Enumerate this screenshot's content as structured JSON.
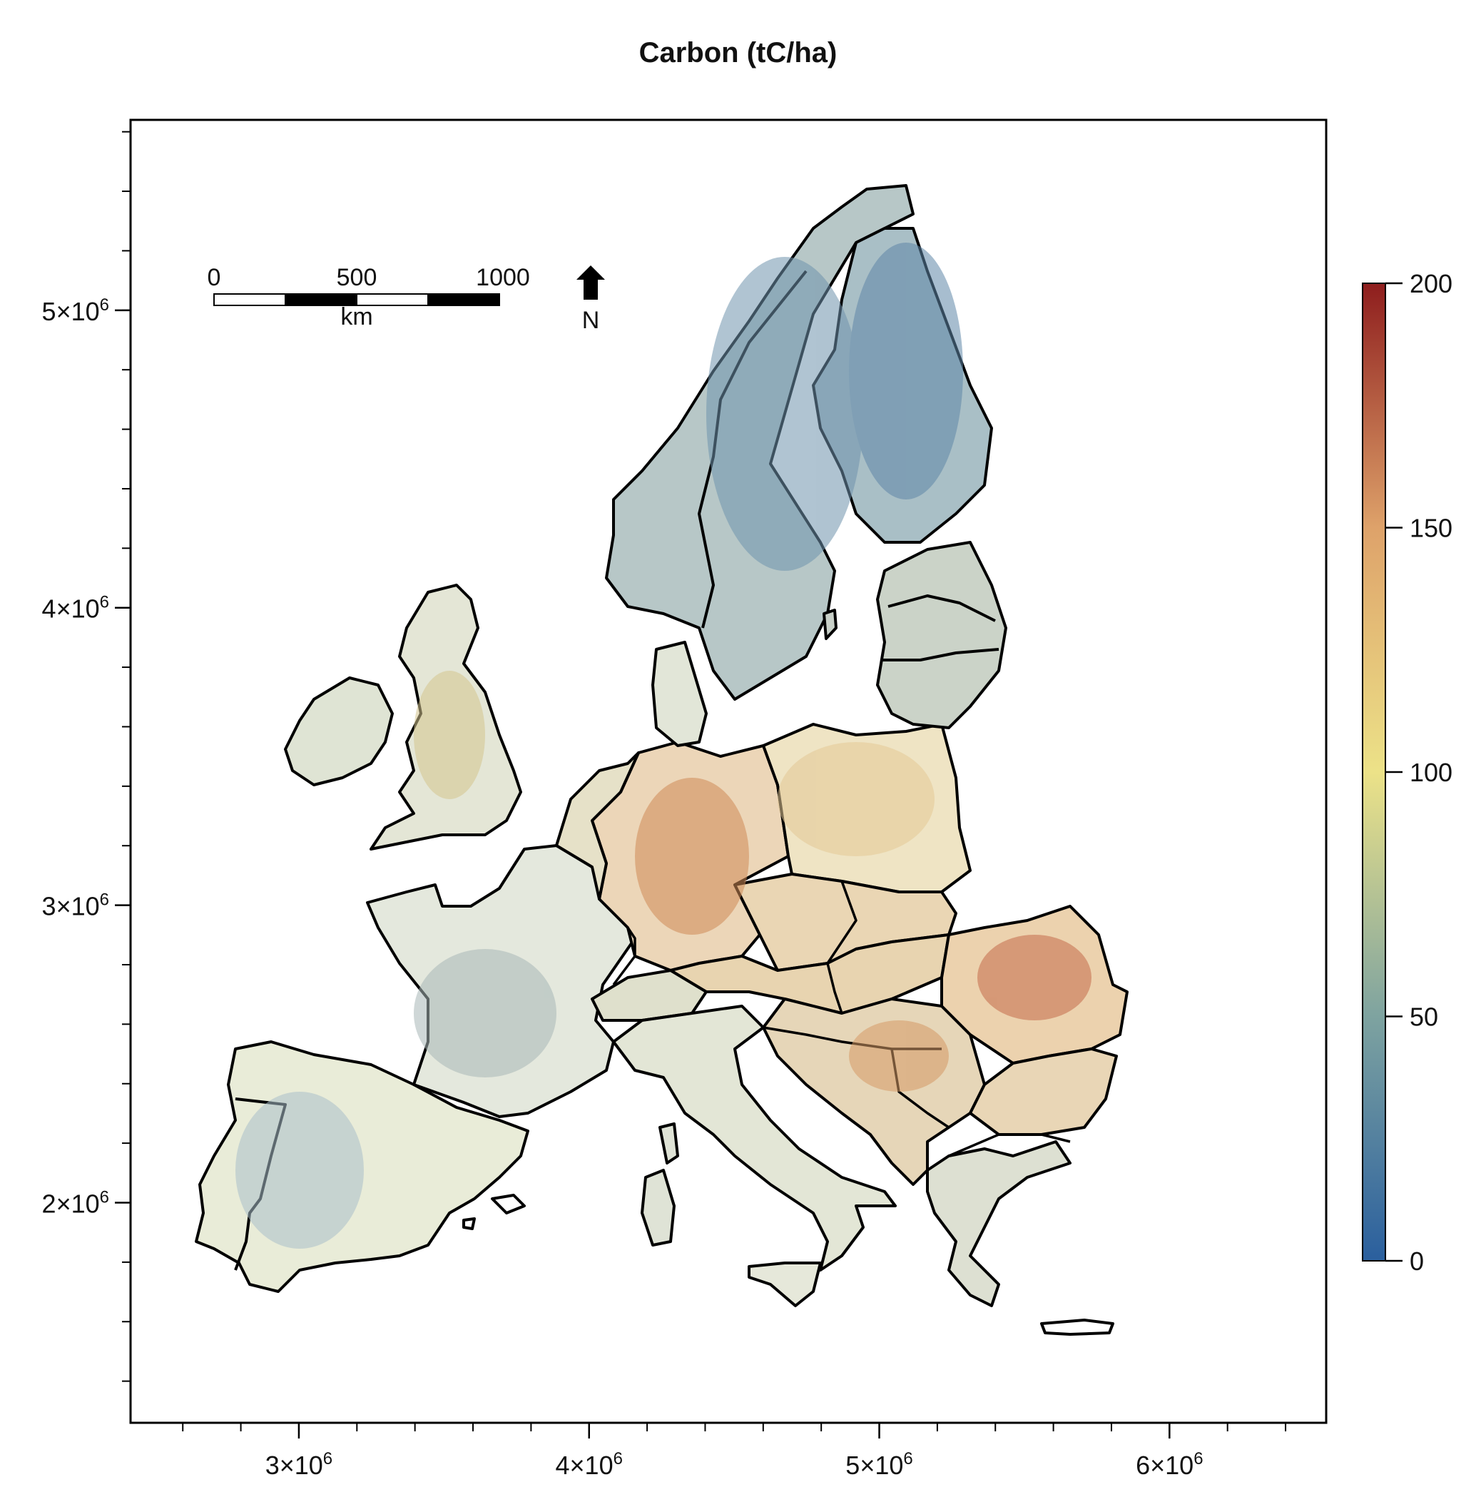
{
  "title": "Carbon (tC/ha)",
  "map": {
    "x_axis": {
      "ticks": [
        {
          "value": 3000000,
          "mantissa": "3",
          "times": "×",
          "base": "10",
          "exp": "6"
        },
        {
          "value": 4000000,
          "mantissa": "4",
          "times": "×",
          "base": "10",
          "exp": "6"
        },
        {
          "value": 5000000,
          "mantissa": "5",
          "times": "×",
          "base": "10",
          "exp": "6"
        },
        {
          "value": 6000000,
          "mantissa": "6",
          "times": "×",
          "base": "10",
          "exp": "6"
        }
      ],
      "range": [
        2420000,
        6540000
      ]
    },
    "y_axis": {
      "ticks": [
        {
          "value": 5000000,
          "mantissa": "5",
          "times": "×",
          "base": "10",
          "exp": "6"
        },
        {
          "value": 4000000,
          "mantissa": "4",
          "times": "×",
          "base": "10",
          "exp": "6"
        },
        {
          "value": 3000000,
          "mantissa": "3",
          "times": "×",
          "base": "10",
          "exp": "6"
        },
        {
          "value": 2000000,
          "mantissa": "2",
          "times": "×",
          "base": "10",
          "exp": "6"
        }
      ],
      "range": [
        1260000,
        5640000
      ]
    },
    "scale_bar": {
      "labels": [
        "0",
        "500",
        "1000"
      ],
      "unit": "km"
    },
    "north_arrow": {
      "label": "N",
      "icon": "north-arrow-icon"
    },
    "legend": {
      "min": 0,
      "max": 200,
      "labels": [
        "200",
        "150",
        "100",
        "50",
        "0"
      ],
      "colors": [
        "#2a5f9e",
        "#7ea3a0",
        "#ece288",
        "#dea26a",
        "#8e1d1d"
      ]
    },
    "colors": {
      "water": "#ffffff",
      "boundary": "#000000",
      "low": "#4a7fb0",
      "mid": "#cfd49a",
      "high": "#c8743f"
    }
  }
}
